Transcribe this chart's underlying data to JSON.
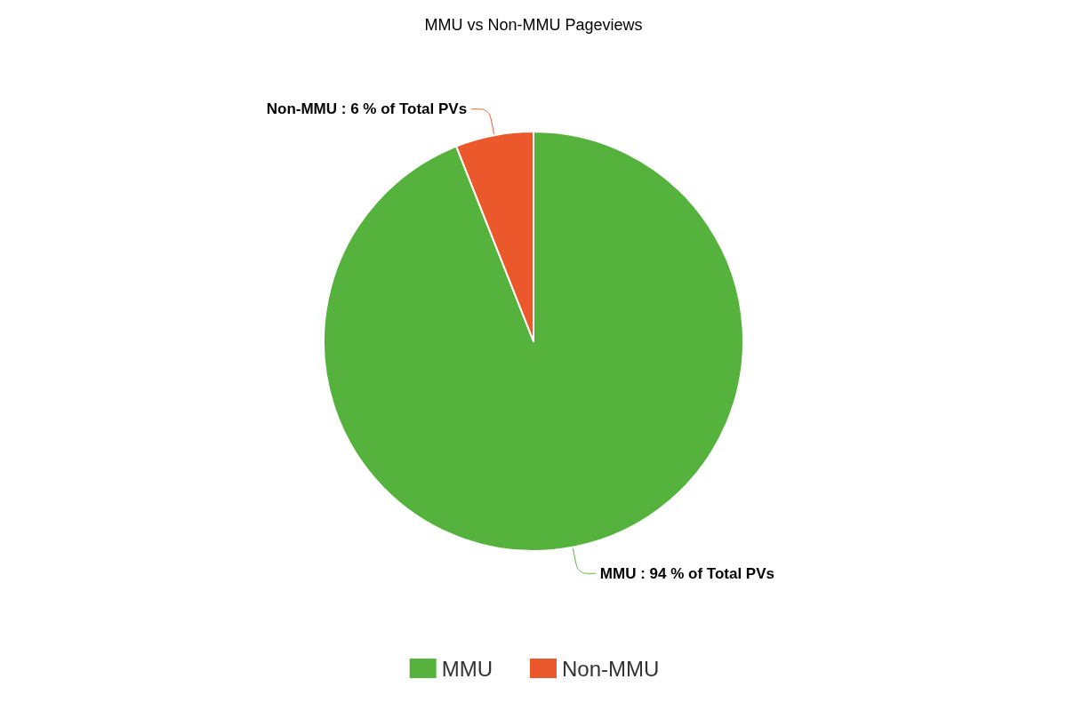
{
  "chart_data": {
    "type": "pie",
    "title": "MMU vs Non-MMU Pageviews",
    "categories": [
      "MMU",
      "Non-MMU"
    ],
    "values": [
      94,
      6
    ],
    "colors": [
      "#55b33d",
      "#eb582b"
    ],
    "value_labels": [
      "MMU : 94 % of Total PVs",
      "Non-MMU : 6 % of Total PVs"
    ],
    "legend": "bottom"
  }
}
